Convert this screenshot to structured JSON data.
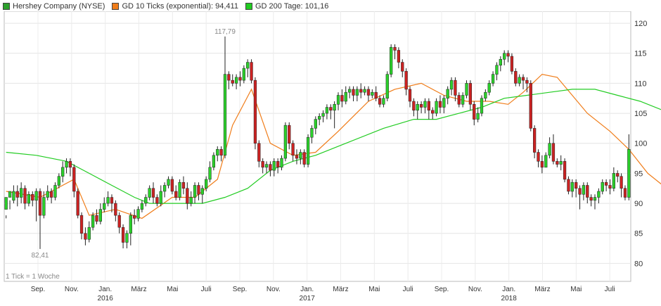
{
  "legend": [
    {
      "label": "Hershey Company (NYSE)",
      "color": "#2ca02c"
    },
    {
      "label": "GD 10 Ticks (exponential): 94,411",
      "color": "#f07d1a"
    },
    {
      "label": "GD 200 Tage: 101,16",
      "color": "#22cc22"
    }
  ],
  "chart_data": {
    "type": "candlestick",
    "note": "1 Tick = 1 Woche",
    "ylim": [
      77,
      122
    ],
    "yticks": [
      80,
      85,
      90,
      95,
      100,
      105,
      110,
      115,
      120
    ],
    "month_labels": [
      "Sep.",
      "Nov.",
      "Jan.",
      "März",
      "Mai",
      "Juli",
      "Sep.",
      "Nov.",
      "Jan.",
      "März",
      "Mai",
      "Juli",
      "Sep.",
      "Nov.",
      "Jan.",
      "März",
      "Mai",
      "Juli"
    ],
    "year_labels": [
      {
        "text": "2016",
        "under": 2
      },
      {
        "text": "2017",
        "under": 8
      },
      {
        "text": "2018",
        "under": 14
      }
    ],
    "annotations": [
      {
        "text": "117,79",
        "bar": 58,
        "pos": "above"
      },
      {
        "text": "82,41",
        "bar": 9,
        "pos": "below"
      }
    ],
    "candles": [
      [
        89.0,
        91.0,
        88.0,
        87.5
      ],
      [
        91.0,
        92.0,
        90.5,
        89.0
      ],
      [
        90.5,
        92.0,
        93.0,
        90.0
      ],
      [
        92.0,
        91.0,
        93.0,
        89.5
      ],
      [
        91.0,
        92.5,
        93.5,
        90.0
      ],
      [
        92.5,
        90.0,
        93.0,
        89.0
      ],
      [
        90.0,
        91.5,
        92.0,
        89.5
      ],
      [
        91.5,
        90.5,
        92.0,
        89.5
      ],
      [
        90.5,
        92.0,
        92.5,
        87.0
      ],
      [
        92.0,
        88.0,
        92.5,
        82.4
      ],
      [
        88.0,
        91.0,
        92.0,
        87.5
      ],
      [
        91.0,
        92.0,
        93.0,
        90.5
      ],
      [
        92.0,
        91.0,
        92.5,
        90.0
      ],
      [
        91.0,
        93.0,
        93.5,
        90.5
      ],
      [
        93.0,
        94.5,
        95.0,
        92.5
      ],
      [
        94.5,
        96.0,
        97.0,
        93.5
      ],
      [
        96.0,
        97.0,
        97.5,
        95.0
      ],
      [
        97.0,
        96.0,
        97.5,
        94.5
      ],
      [
        96.0,
        92.0,
        96.5,
        91.0
      ],
      [
        92.0,
        88.0,
        92.5,
        87.5
      ],
      [
        88.0,
        85.0,
        88.5,
        84.0
      ],
      [
        85.0,
        84.0,
        86.0,
        83.0
      ],
      [
        84.0,
        86.0,
        87.0,
        83.5
      ],
      [
        86.0,
        88.0,
        88.5,
        85.5
      ],
      [
        88.0,
        87.0,
        89.0,
        86.5
      ],
      [
        87.0,
        89.0,
        90.0,
        86.5
      ],
      [
        89.0,
        90.0,
        91.0,
        88.5
      ],
      [
        90.0,
        91.0,
        92.0,
        89.5
      ],
      [
        91.0,
        90.0,
        91.5,
        88.5
      ],
      [
        90.0,
        88.0,
        90.5,
        87.0
      ],
      [
        88.0,
        86.0,
        88.5,
        85.0
      ],
      [
        86.0,
        83.5,
        86.5,
        82.5
      ],
      [
        83.5,
        85.0,
        85.5,
        82.5
      ],
      [
        85.0,
        88.0,
        88.5,
        83.0
      ],
      [
        88.0,
        87.5,
        89.0,
        86.5
      ],
      [
        87.5,
        89.0,
        89.5,
        87.0
      ],
      [
        89.0,
        90.0,
        90.5,
        88.5
      ],
      [
        90.0,
        91.0,
        91.5,
        89.5
      ],
      [
        91.0,
        92.5,
        93.0,
        90.5
      ],
      [
        92.5,
        91.0,
        93.5,
        90.0
      ],
      [
        91.0,
        90.0,
        91.5,
        89.5
      ],
      [
        90.0,
        92.0,
        93.0,
        89.5
      ],
      [
        92.0,
        93.0,
        93.5,
        91.0
      ],
      [
        93.0,
        94.0,
        94.5,
        92.5
      ],
      [
        94.0,
        92.0,
        94.5,
        91.5
      ],
      [
        92.0,
        91.0,
        93.0,
        90.5
      ],
      [
        91.0,
        93.5,
        94.0,
        90.5
      ],
      [
        93.5,
        92.5,
        94.5,
        91.5
      ],
      [
        92.5,
        90.0,
        93.5,
        89.0
      ],
      [
        90.0,
        91.0,
        92.0,
        89.5
      ],
      [
        91.0,
        93.0,
        93.5,
        90.0
      ],
      [
        93.0,
        91.5,
        93.5,
        90.5
      ],
      [
        91.5,
        92.5,
        93.0,
        90.0
      ],
      [
        92.5,
        94.0,
        94.5,
        92.0
      ],
      [
        94.0,
        96.0,
        97.0,
        93.5
      ],
      [
        96.0,
        98.0,
        98.5,
        95.5
      ],
      [
        98.0,
        99.0,
        99.5,
        97.0
      ],
      [
        99.0,
        98.0,
        99.5,
        97.0
      ],
      [
        98.0,
        111.5,
        117.8,
        97.5
      ],
      [
        111.5,
        110.5,
        112.0,
        109.0
      ],
      [
        110.5,
        110.0,
        111.5,
        109.5
      ],
      [
        110.0,
        111.0,
        111.5,
        109.0
      ],
      [
        111.0,
        110.5,
        112.0,
        109.5
      ],
      [
        110.5,
        112.5,
        113.0,
        110.0
      ],
      [
        112.5,
        113.5,
        114.0,
        111.0
      ],
      [
        113.5,
        110.5,
        114.0,
        110.0
      ],
      [
        110.5,
        100.0,
        111.0,
        99.0
      ],
      [
        100.0,
        97.0,
        100.5,
        96.0
      ],
      [
        97.0,
        96.0,
        97.5,
        95.0
      ],
      [
        96.0,
        96.5,
        97.0,
        95.0
      ],
      [
        96.5,
        95.5,
        97.0,
        94.5
      ],
      [
        95.5,
        97.0,
        97.5,
        94.5
      ],
      [
        97.0,
        96.0,
        97.5,
        95.0
      ],
      [
        96.0,
        97.5,
        98.0,
        95.5
      ],
      [
        97.5,
        103.0,
        103.5,
        97.0
      ],
      [
        103.0,
        100.0,
        103.5,
        99.0
      ],
      [
        100.0,
        98.0,
        100.5,
        97.0
      ],
      [
        98.0,
        97.5,
        99.0,
        96.5
      ],
      [
        97.5,
        98.5,
        99.0,
        96.5
      ],
      [
        98.5,
        96.5,
        99.0,
        96.0
      ],
      [
        96.5,
        101.0,
        101.5,
        96.0
      ],
      [
        101.0,
        102.5,
        103.0,
        100.0
      ],
      [
        102.5,
        104.0,
        104.5,
        101.5
      ],
      [
        104.0,
        104.5,
        105.0,
        103.0
      ],
      [
        104.5,
        105.0,
        105.5,
        103.5
      ],
      [
        105.0,
        106.0,
        106.5,
        104.0
      ],
      [
        106.0,
        105.5,
        106.5,
        104.0
      ],
      [
        105.5,
        106.5,
        107.0,
        102.5
      ],
      [
        106.5,
        108.0,
        108.5,
        105.5
      ],
      [
        108.0,
        107.0,
        109.0,
        106.0
      ],
      [
        107.0,
        108.5,
        109.5,
        106.5
      ],
      [
        108.5,
        109.0,
        109.5,
        107.5
      ],
      [
        109.0,
        108.0,
        109.5,
        107.0
      ],
      [
        108.0,
        109.0,
        109.5,
        107.0
      ],
      [
        109.0,
        108.5,
        110.0,
        107.5
      ],
      [
        108.5,
        109.0,
        109.5,
        108.0
      ],
      [
        109.0,
        108.0,
        109.5,
        107.0
      ],
      [
        108.0,
        108.5,
        109.0,
        107.5
      ],
      [
        108.5,
        107.5,
        109.5,
        107.0
      ],
      [
        107.5,
        106.5,
        108.0,
        106.0
      ],
      [
        106.5,
        107.5,
        108.0,
        106.0
      ],
      [
        107.5,
        111.5,
        112.0,
        107.0
      ],
      [
        111.5,
        116.0,
        116.5,
        111.0
      ],
      [
        116.0,
        115.5,
        116.5,
        114.0
      ],
      [
        115.5,
        113.5,
        116.0,
        112.5
      ],
      [
        113.5,
        112.0,
        114.0,
        111.0
      ],
      [
        112.0,
        109.0,
        112.5,
        108.0
      ],
      [
        109.0,
        107.0,
        109.5,
        106.0
      ],
      [
        107.0,
        105.5,
        107.5,
        104.5
      ],
      [
        105.5,
        106.5,
        107.0,
        104.0
      ],
      [
        106.5,
        106.0,
        107.0,
        105.0
      ],
      [
        106.0,
        107.0,
        107.5,
        105.0
      ],
      [
        107.0,
        105.5,
        107.5,
        104.0
      ],
      [
        105.5,
        105.0,
        106.0,
        104.0
      ],
      [
        105.0,
        107.0,
        107.5,
        104.5
      ],
      [
        107.0,
        106.0,
        108.0,
        105.0
      ],
      [
        106.0,
        107.5,
        108.0,
        105.0
      ],
      [
        107.5,
        109.0,
        109.5,
        106.5
      ],
      [
        109.0,
        110.5,
        111.0,
        108.0
      ],
      [
        110.5,
        108.0,
        111.0,
        107.0
      ],
      [
        108.0,
        106.5,
        108.5,
        106.0
      ],
      [
        106.5,
        108.0,
        108.5,
        106.0
      ],
      [
        108.0,
        110.0,
        110.5,
        107.5
      ],
      [
        110.0,
        106.5,
        110.5,
        105.5
      ],
      [
        106.5,
        104.0,
        107.0,
        103.0
      ],
      [
        104.0,
        105.0,
        106.0,
        103.5
      ],
      [
        105.0,
        107.5,
        108.0,
        104.5
      ],
      [
        107.5,
        108.5,
        109.0,
        107.0
      ],
      [
        108.5,
        110.0,
        110.5,
        108.0
      ],
      [
        110.0,
        111.5,
        112.0,
        109.5
      ],
      [
        111.5,
        113.0,
        113.5,
        110.5
      ],
      [
        113.0,
        114.0,
        114.5,
        112.0
      ],
      [
        114.0,
        115.0,
        115.5,
        113.0
      ],
      [
        115.0,
        114.5,
        115.5,
        113.5
      ],
      [
        114.5,
        112.0,
        115.0,
        111.5
      ],
      [
        112.0,
        110.0,
        112.5,
        109.5
      ],
      [
        110.0,
        111.0,
        111.5,
        109.5
      ],
      [
        111.0,
        110.5,
        111.5,
        109.0
      ],
      [
        110.5,
        110.0,
        111.0,
        108.5
      ],
      [
        110.0,
        102.5,
        110.5,
        102.0
      ],
      [
        102.5,
        98.5,
        103.0,
        97.5
      ],
      [
        98.5,
        97.0,
        99.0,
        96.0
      ],
      [
        97.0,
        96.0,
        98.0,
        95.0
      ],
      [
        96.0,
        98.0,
        98.5,
        96.0
      ],
      [
        98.0,
        100.0,
        101.0,
        97.5
      ],
      [
        100.0,
        97.0,
        101.5,
        96.5
      ],
      [
        97.0,
        96.5,
        97.5,
        96.0
      ],
      [
        96.5,
        97.0,
        98.0,
        95.5
      ],
      [
        97.0,
        94.0,
        97.5,
        93.5
      ],
      [
        94.0,
        92.0,
        94.5,
        91.5
      ],
      [
        92.0,
        93.5,
        94.0,
        91.0
      ],
      [
        93.5,
        92.5,
        94.0,
        91.0
      ],
      [
        92.5,
        91.5,
        93.0,
        89.0
      ],
      [
        91.5,
        93.0,
        93.5,
        90.5
      ],
      [
        93.0,
        91.0,
        93.5,
        90.0
      ],
      [
        91.0,
        90.5,
        91.5,
        89.5
      ],
      [
        90.5,
        91.0,
        91.5,
        89.0
      ],
      [
        91.0,
        92.0,
        92.5,
        90.0
      ],
      [
        92.0,
        93.5,
        94.0,
        91.5
      ],
      [
        93.5,
        93.0,
        94.0,
        92.0
      ],
      [
        93.0,
        92.5,
        94.0,
        91.5
      ],
      [
        92.5,
        95.0,
        96.0,
        92.0
      ],
      [
        95.0,
        94.5,
        95.5,
        93.5
      ],
      [
        94.5,
        92.5,
        95.0,
        91.0
      ],
      [
        92.5,
        91.0,
        93.0,
        90.5
      ],
      [
        91.0,
        99.0,
        101.5,
        90.5
      ]
    ],
    "series": [
      {
        "name": "GD 10 Ticks (exponential)",
        "color": "#f07d1a",
        "points": [
          [
            0,
            92.0
          ],
          [
            9,
            91.0
          ],
          [
            18,
            94.0
          ],
          [
            22,
            88.0
          ],
          [
            29,
            89.0
          ],
          [
            36,
            87.5
          ],
          [
            44,
            91.0
          ],
          [
            50,
            91.0
          ],
          [
            56,
            94.0
          ],
          [
            60,
            103.0
          ],
          [
            65,
            109.0
          ],
          [
            70,
            100.0
          ],
          [
            76,
            98.0
          ],
          [
            82,
            98.5
          ],
          [
            88,
            102.0
          ],
          [
            96,
            107.0
          ],
          [
            103,
            109.0
          ],
          [
            110,
            110.0
          ],
          [
            116,
            108.0
          ],
          [
            122,
            107.0
          ],
          [
            128,
            107.0
          ],
          [
            133,
            106.5
          ],
          [
            137,
            108.5
          ],
          [
            142,
            111.5
          ],
          [
            146,
            111.0
          ],
          [
            150,
            108.0
          ],
          [
            154,
            105.0
          ],
          [
            160,
            102.0
          ],
          [
            165,
            99.0
          ],
          [
            170,
            95.0
          ],
          [
            174,
            93.0
          ],
          [
            178,
            92.0
          ],
          [
            182,
            93.0
          ],
          [
            186,
            94.4
          ]
        ]
      },
      {
        "name": "GD 200 Tage",
        "color": "#22cc22",
        "points": [
          [
            0,
            98.5
          ],
          [
            8,
            98.0
          ],
          [
            16,
            97.0
          ],
          [
            22,
            95.0
          ],
          [
            28,
            93.0
          ],
          [
            34,
            91.0
          ],
          [
            38,
            90.0
          ],
          [
            44,
            90.0
          ],
          [
            52,
            90.0
          ],
          [
            58,
            91.0
          ],
          [
            64,
            92.5
          ],
          [
            70,
            95.5
          ],
          [
            76,
            97.0
          ],
          [
            82,
            98.0
          ],
          [
            90,
            100.0
          ],
          [
            100,
            102.5
          ],
          [
            108,
            104.0
          ],
          [
            114,
            104.0
          ],
          [
            120,
            105.0
          ],
          [
            126,
            106.0
          ],
          [
            132,
            107.5
          ],
          [
            138,
            108.0
          ],
          [
            144,
            108.5
          ],
          [
            150,
            109.0
          ],
          [
            156,
            109.0
          ],
          [
            162,
            108.0
          ],
          [
            168,
            107.0
          ],
          [
            176,
            105.0
          ],
          [
            182,
            103.0
          ],
          [
            186,
            101.2
          ]
        ]
      }
    ]
  }
}
